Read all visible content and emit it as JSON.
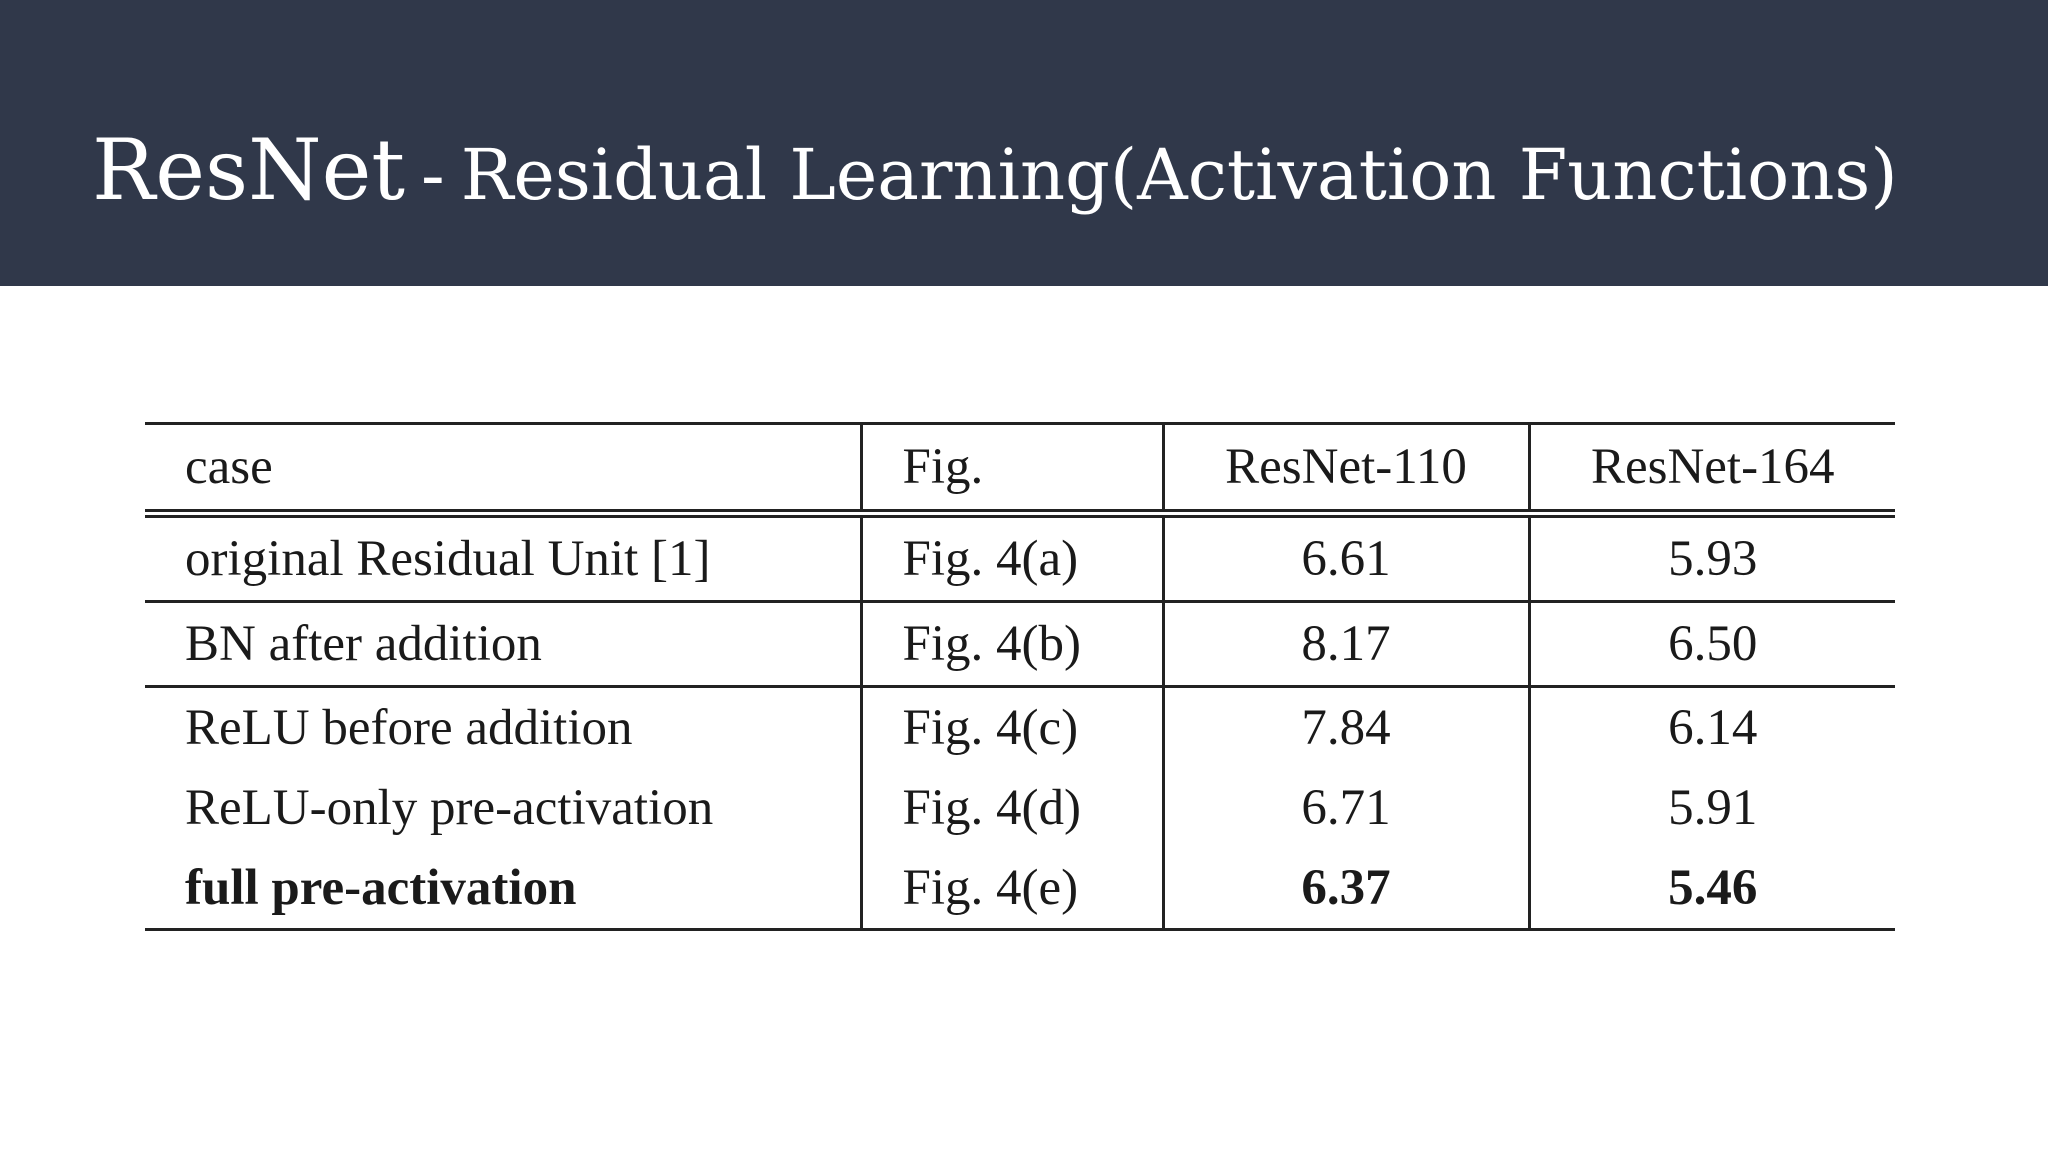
{
  "slide": {
    "title_main": "ResNet",
    "title_separator": "-",
    "title_sub": "Residual Learning(Activation Functions)",
    "header_color": "#30384a"
  },
  "table": {
    "headers": [
      "case",
      "Fig.",
      "ResNet-110",
      "ResNet-164"
    ],
    "rows": [
      {
        "case": "original Residual Unit [1]",
        "fig": "Fig. 4(a)",
        "resnet110": "6.61",
        "resnet164": "5.93",
        "bold": false
      },
      {
        "case": "BN after addition",
        "fig": "Fig. 4(b)",
        "resnet110": "8.17",
        "resnet164": "6.50",
        "bold": false
      },
      {
        "case": "ReLU before addition",
        "fig": "Fig. 4(c)",
        "resnet110": "7.84",
        "resnet164": "6.14",
        "bold": false
      },
      {
        "case": "ReLU-only pre-activation",
        "fig": "Fig. 4(d)",
        "resnet110": "6.71",
        "resnet164": "5.91",
        "bold": false
      },
      {
        "case": "full pre-activation",
        "fig": "Fig. 4(e)",
        "resnet110": "6.37",
        "resnet164": "5.46",
        "bold": true
      }
    ]
  }
}
